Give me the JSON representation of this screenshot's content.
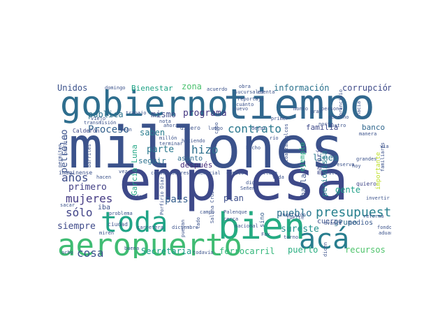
{
  "words": [
    {
      "text": "millones",
      "color": "#3b528b"
    },
    {
      "text": "empresa",
      "color": "#3e4989"
    },
    {
      "text": "tiempo",
      "color": "#31688e"
    },
    {
      "text": "gobierno",
      "color": "#2e6e8e"
    },
    {
      "text": "bien",
      "color": "#25ab82"
    },
    {
      "text": "aeropuerto",
      "color": "#3fbc73"
    },
    {
      "text": "toda",
      "color": "#20a486"
    },
    {
      "text": "acá",
      "color": "#287d8e"
    },
    {
      "text": "presupuesto",
      "color": "#27808e"
    },
    {
      "text": "contrato",
      "color": "#2a788e"
    },
    {
      "text": "hizo",
      "color": "#2d708e"
    },
    {
      "text": "mujeres",
      "color": "#443a83"
    },
    {
      "text": "años",
      "color": "#3d4d8a"
    },
    {
      "text": "sólo",
      "color": "#404387"
    },
    {
      "text": "cosa",
      "color": "#3b528b"
    },
    {
      "text": "siempre",
      "color": "#3e4989"
    },
    {
      "text": "pueblo",
      "color": "#2c728e"
    },
    {
      "text": "país",
      "color": "#355f8d"
    },
    {
      "text": "parte",
      "color": "#2a788e"
    },
    {
      "text": "mismo",
      "color": "#3e4c8a"
    },
    {
      "text": "Proceso",
      "color": "#34618d"
    },
    {
      "text": "programa",
      "color": "#453781"
    },
    {
      "text": "pública",
      "color": "#2c738e"
    },
    {
      "text": "saben",
      "color": "#287c8e"
    },
    {
      "text": "seguir",
      "color": "#2c728e"
    },
    {
      "text": "primero",
      "color": "#423f85"
    },
    {
      "text": "información",
      "color": "#2c738e"
    },
    {
      "text": "corrupción",
      "color": "#3e4a89"
    },
    {
      "text": "zona",
      "color": "#4ac16d"
    },
    {
      "text": "Unidos",
      "color": "#3b528b"
    },
    {
      "text": "Bienestar",
      "color": "#20a386"
    },
    {
      "text": "gente",
      "color": "#1fa088"
    },
    {
      "text": "grupo",
      "color": "#2e6f8e"
    },
    {
      "text": "sureste",
      "color": "#21918c"
    },
    {
      "text": "recursos",
      "color": "#4ec36b"
    },
    {
      "text": "ferrocarril",
      "color": "#32b67a"
    },
    {
      "text": "puerto",
      "color": "#28ae80"
    },
    {
      "text": "Secretaría",
      "color": "#1e9b8a"
    },
    {
      "text": "García Luna",
      "color": "#22a785"
    },
    {
      "text": "petróleo",
      "color": "#3b528b"
    },
    {
      "text": "familia",
      "color": "#3e4989"
    },
    {
      "text": "banco",
      "color": "#31688e"
    },
    {
      "text": "línea",
      "color": "#2a788e"
    },
    {
      "text": "plan",
      "color": "#3d4e8a"
    },
    {
      "text": "medios",
      "color": "#38598c"
    },
    {
      "text": "cuerpo",
      "color": "#3b528b"
    },
    {
      "text": "después",
      "color": "#472d7b"
    },
    {
      "text": "asunto",
      "color": "#2f6c8e"
    },
    {
      "text": "iba",
      "color": "#3b528b"
    },
    {
      "text": "habla",
      "color": "#3b528b"
    },
    {
      "text": "periodista",
      "color": "#277f8e"
    },
    {
      "text": "mayoría",
      "color": "#3e4989"
    },
    {
      "text": "importante",
      "color": "#bddf26"
    },
    {
      "text": "ejemplo",
      "color": "#27ad81"
    },
    {
      "text": "ciudad",
      "color": "#3b528b"
    },
    {
      "text": "sino",
      "color": "#355f8d"
    },
    {
      "text": "quiero",
      "color": "#404688"
    },
    {
      "text": "dinero",
      "color": "#3b528b"
    },
    {
      "text": "Calderón",
      "color": "#3e4989"
    },
    {
      "text": "problema",
      "color": "#3b528b"
    },
    {
      "text": "diciembre",
      "color": "#3b528b"
    },
    {
      "text": "carretera",
      "color": "#3b528b"
    },
    {
      "text": "nacional",
      "color": "#3b528b"
    },
    {
      "text": "Palenque",
      "color": "#3b528b"
    },
    {
      "text": "Salina Cruz",
      "color": "#3b528b"
    },
    {
      "text": "Porfirio Díaz",
      "color": "#3b528b"
    },
    {
      "text": "Poder",
      "color": "#3b528b"
    },
    {
      "text": "conservadores",
      "color": "#3b528b"
    },
    {
      "text": "memorial",
      "color": "#3b528b"
    },
    {
      "text": "cambio",
      "color": "#3b528b"
    },
    {
      "text": "llama",
      "color": "#3b528b"
    },
    {
      "text": "cerca",
      "color": "#3b528b"
    },
    {
      "text": "dio",
      "color": "#3b528b"
    },
    {
      "text": "Señena",
      "color": "#3b528b"
    },
    {
      "text": "vida",
      "color": "#3b528b"
    },
    {
      "text": "río",
      "color": "#3b528b"
    },
    {
      "text": "hecho",
      "color": "#3b528b"
    },
    {
      "text": "haciendo",
      "color": "#3b528b"
    },
    {
      "text": "nota",
      "color": "#3b528b"
    },
    {
      "text": "millón",
      "color": "#3b528b"
    },
    {
      "text": "terminar",
      "color": "#3b528b"
    },
    {
      "text": "ahora",
      "color": "#3b528b"
    },
    {
      "text": "sean",
      "color": "#3b528b"
    },
    {
      "text": "trabajo",
      "color": "#3b528b"
    },
    {
      "text": "domingo",
      "color": "#3b528b"
    },
    {
      "text": "acuerdo",
      "color": "#3b528b"
    },
    {
      "text": "obra",
      "color": "#3b528b"
    },
    {
      "text": "sucursales",
      "color": "#3b528b"
    },
    {
      "text": "reportaje",
      "color": "#3b528b"
    },
    {
      "text": "cuánto",
      "color": "#3b528b"
    },
    {
      "text": "nuevo",
      "color": "#3b528b"
    },
    {
      "text": "dejar",
      "color": "#3b528b"
    },
    {
      "text": "cuenta",
      "color": "#3b528b"
    },
    {
      "text": "monto",
      "color": "#3b528b"
    },
    {
      "text": "gran",
      "color": "#3b528b"
    },
    {
      "text": "persona",
      "color": "#3b528b"
    },
    {
      "text": "norte",
      "color": "#3b528b"
    },
    {
      "text": "principio",
      "color": "#3b528b"
    },
    {
      "text": "derecho",
      "color": "#3b528b"
    },
    {
      "text": "cuatro",
      "color": "#3b528b"
    },
    {
      "text": "hacia",
      "color": "#3b528b"
    },
    {
      "text": "manera",
      "color": "#3b528b"
    },
    {
      "text": "vía",
      "color": "#3b528b"
    },
    {
      "text": "grandes",
      "color": "#3b528b"
    },
    {
      "text": "familiares",
      "color": "#3b528b"
    },
    {
      "text": "hoy",
      "color": "#3b528b"
    },
    {
      "text": "falta",
      "color": "#3b528b"
    },
    {
      "text": "reserva",
      "color": "#3b528b"
    },
    {
      "text": "invertir",
      "color": "#3b528b"
    },
    {
      "text": "reforma",
      "color": "#3b528b"
    },
    {
      "text": "aduanas",
      "color": "#3b528b"
    },
    {
      "text": "fondo",
      "color": "#3b528b"
    },
    {
      "text": "llegar",
      "color": "#3b528b"
    },
    {
      "text": "avance",
      "color": "#3b528b"
    },
    {
      "text": "dicen",
      "color": "#3b528b"
    },
    {
      "text": "torno",
      "color": "#3b528b"
    },
    {
      "text": "fuerte",
      "color": "#3b528b"
    },
    {
      "text": "Fox",
      "color": "#3b528b"
    },
    {
      "text": "inversión",
      "color": "#3b528b"
    },
    {
      "text": "lado",
      "color": "#3b528b"
    },
    {
      "text": "campo",
      "color": "#3b528b"
    },
    {
      "text": "puedan",
      "color": "#3b528b"
    },
    {
      "text": "todavía",
      "color": "#3b528b"
    },
    {
      "text": "buena",
      "color": "#3b528b"
    },
    {
      "text": "ocho",
      "color": "#3b528b"
    },
    {
      "text": "sacar",
      "color": "#3b528b"
    },
    {
      "text": "miren",
      "color": "#3b528b"
    },
    {
      "text": "hacen",
      "color": "#3b528b"
    },
    {
      "text": "imaginense",
      "color": "#3b528b"
    },
    {
      "text": "vez",
      "color": "#3b528b"
    },
    {
      "text": "permiten",
      "color": "#3b528b"
    },
    {
      "text": "barriles",
      "color": "#3b528b"
    },
    {
      "text": "pública",
      "color": "#3b528b"
    },
    {
      "text": "transmisión",
      "color": "#3b528b"
    },
    {
      "text": "viejo",
      "color": "#3b528b"
    },
    {
      "text": "luego",
      "color": "#3b528b"
    },
    {
      "text": "primer",
      "color": "#3b528b"
    },
    {
      "text": "cabo",
      "color": "#3b528b"
    },
    {
      "text": "Coatzacoalcos",
      "color": "#3b528b"
    },
    {
      "text": "cierto",
      "color": "#3b528b"
    }
  ]
}
